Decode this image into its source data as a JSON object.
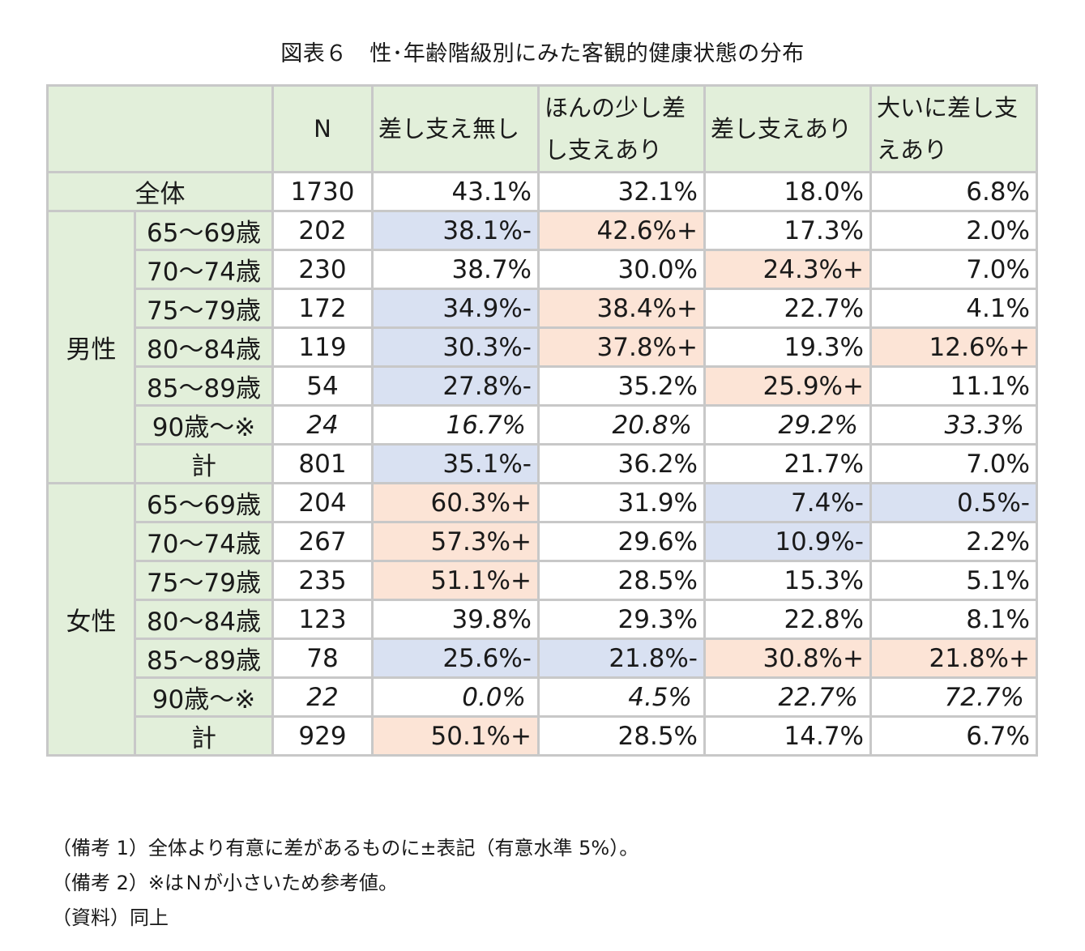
{
  "title": "図表６　性･年齢階級別にみた客観的健康状態の分布",
  "header": {
    "n": "N",
    "cols": [
      "差し支え無し",
      "ほんの少し差し支えあり",
      "差し支えあり",
      "大いに差し支えあり"
    ]
  },
  "total": {
    "label": "全体",
    "n": "1730",
    "values": [
      "43.1%",
      "32.1%",
      "18.0%",
      "6.8%"
    ]
  },
  "groups": [
    {
      "name": "男性",
      "rows": [
        {
          "age": "65～69歳",
          "n": "202",
          "values": [
            "38.1%-",
            "42.6%+",
            "17.3%",
            "2.0%"
          ]
        },
        {
          "age": "70～74歳",
          "n": "230",
          "values": [
            "38.7%",
            "30.0%",
            "24.3%+",
            "7.0%"
          ]
        },
        {
          "age": "75～79歳",
          "n": "172",
          "values": [
            "34.9%-",
            "38.4%+",
            "22.7%",
            "4.1%"
          ]
        },
        {
          "age": "80～84歳",
          "n": "119",
          "values": [
            "30.3%-",
            "37.8%+",
            "19.3%",
            "12.6%+"
          ]
        },
        {
          "age": "85～89歳",
          "n": "54",
          "values": [
            "27.8%-",
            "35.2%",
            "25.9%+",
            "11.1%"
          ]
        },
        {
          "age": "90歳～※",
          "n": "24",
          "values": [
            "16.7%",
            "20.8%",
            "29.2%",
            "33.3%"
          ]
        },
        {
          "age": "計",
          "n": "801",
          "values": [
            "35.1%-",
            "36.2%",
            "21.7%",
            "7.0%"
          ]
        }
      ]
    },
    {
      "name": "女性",
      "rows": [
        {
          "age": "65～69歳",
          "n": "204",
          "values": [
            "60.3%+",
            "31.9%",
            "7.4%-",
            "0.5%-"
          ]
        },
        {
          "age": "70～74歳",
          "n": "267",
          "values": [
            "57.3%+",
            "29.6%",
            "10.9%-",
            "2.2%"
          ]
        },
        {
          "age": "75～79歳",
          "n": "235",
          "values": [
            "51.1%+",
            "28.5%",
            "15.3%",
            "5.1%"
          ]
        },
        {
          "age": "80～84歳",
          "n": "123",
          "values": [
            "39.8%",
            "29.3%",
            "22.8%",
            "8.1%"
          ]
        },
        {
          "age": "85～89歳",
          "n": "78",
          "values": [
            "25.6%-",
            "21.8%-",
            "30.8%+",
            "21.8%+"
          ]
        },
        {
          "age": "90歳～※",
          "n": "22",
          "values": [
            "0.0%",
            "4.5%",
            "22.7%",
            "72.7%"
          ]
        },
        {
          "age": "計",
          "n": "929",
          "values": [
            "50.1%+",
            "28.5%",
            "14.7%",
            "6.7%"
          ]
        }
      ]
    }
  ],
  "colors": {
    "header_bg": "#e2efda",
    "minus_bg": "#d9e1f2",
    "plus_bg": "#fce4d6",
    "border": "#c8c8c8"
  },
  "notes": [
    "（備考 1）全体より有意に差があるものに±表記（有意水準 5%）。",
    "（備考 2）※はＮが小さいため参考値。",
    "（資料）同上"
  ]
}
